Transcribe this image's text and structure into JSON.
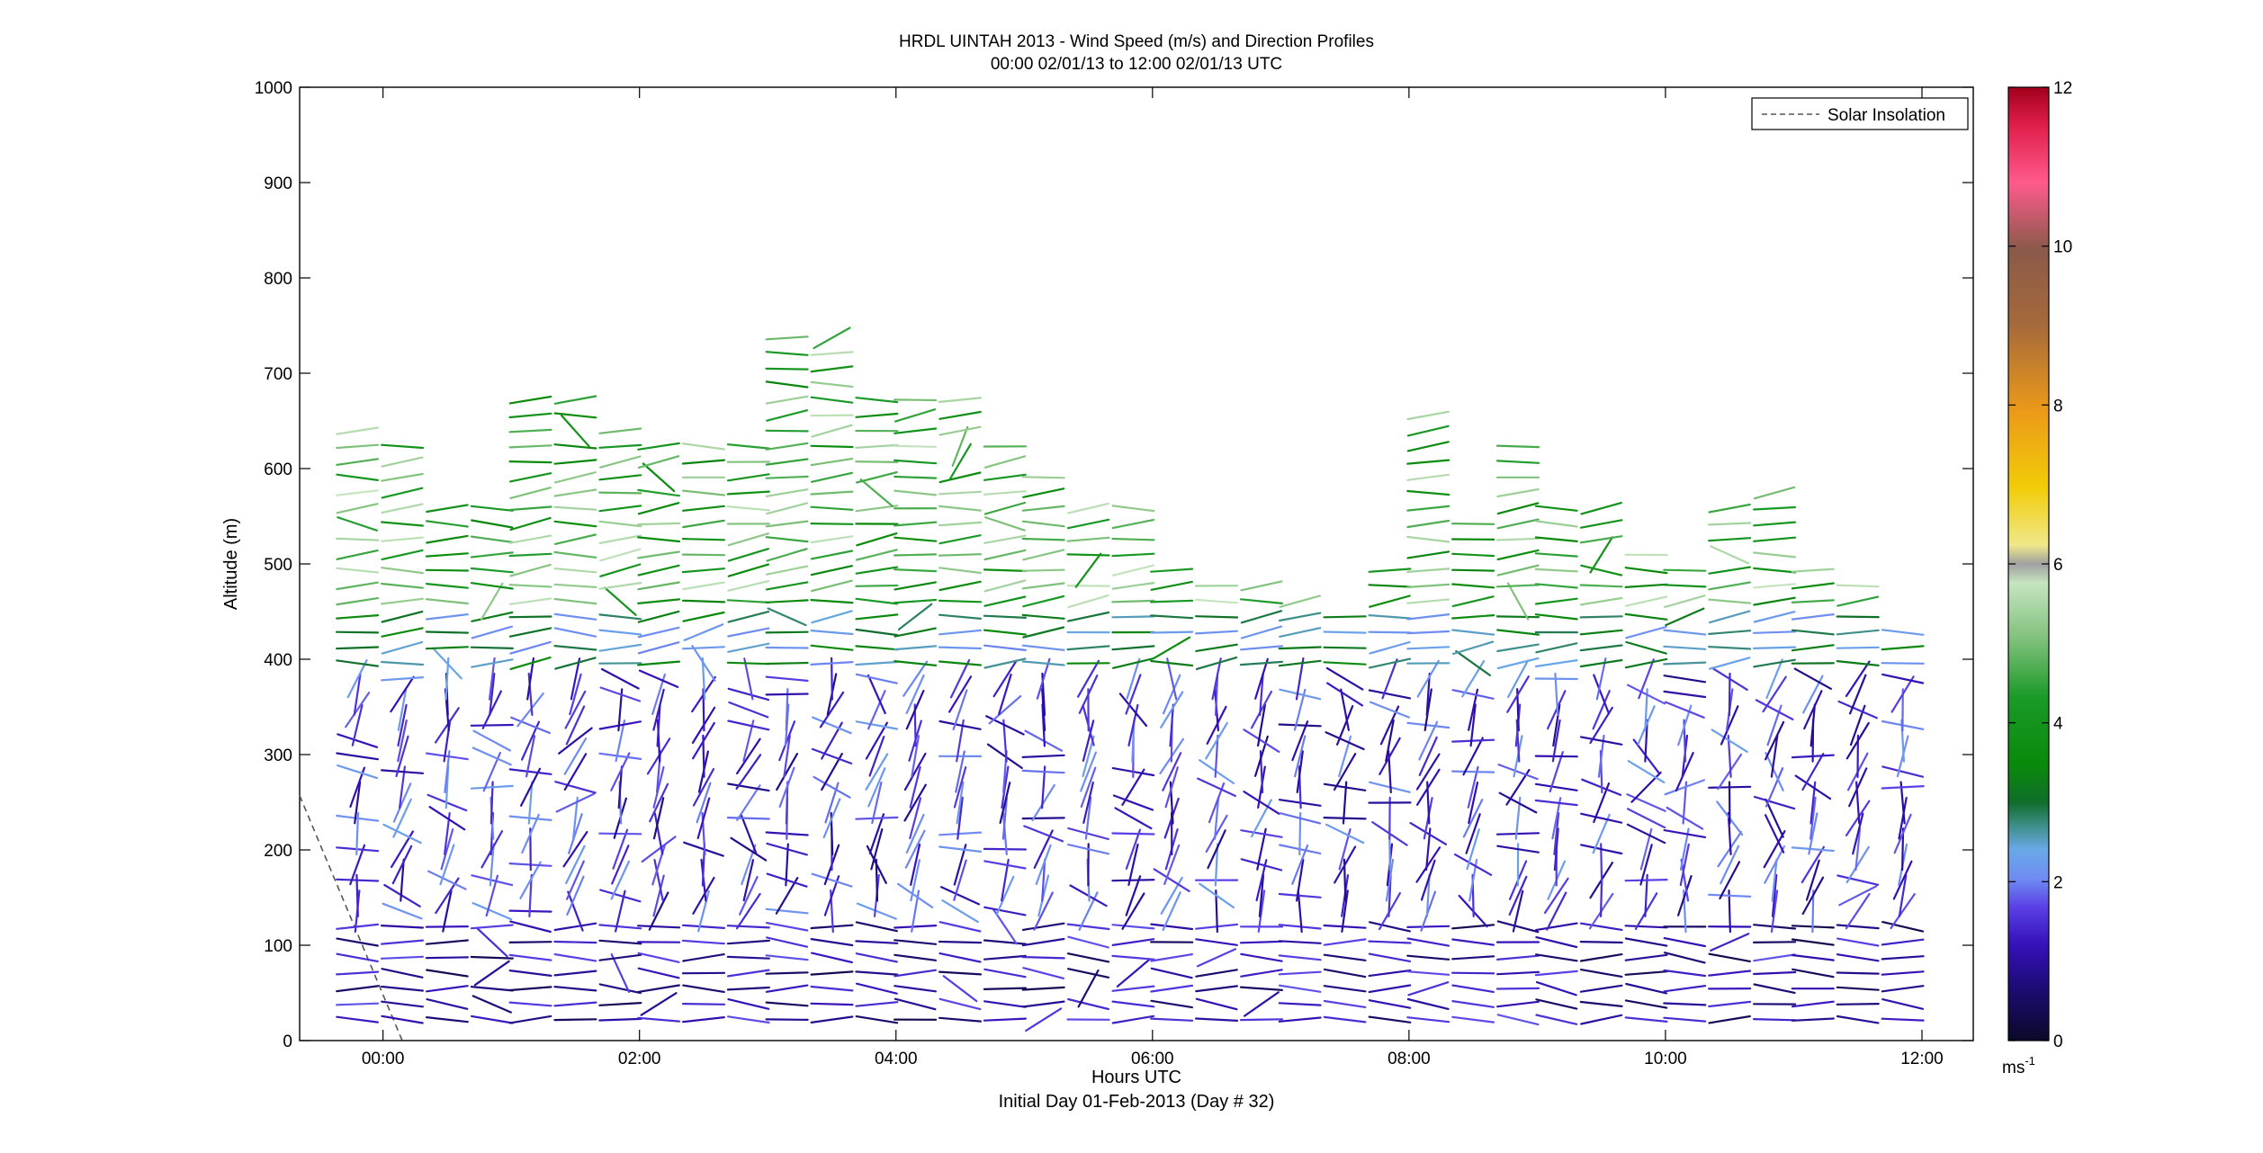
{
  "title_line1": "HRDL UINTAH 2013 - Wind Speed (m/s) and Direction Profiles",
  "title_line2": "00:00 02/01/13 to 12:00 02/01/13  UTC",
  "xlabel": "Hours UTC",
  "footer": "Initial Day 01-Feb-2013 (Day # 32)",
  "ylabel": "Altitude (m)",
  "legend_label": "Solar Insolation",
  "colorbar_unit": "ms",
  "colorbar_unit_exp": "-1",
  "x_ticks": [
    "00:00",
    "02:00",
    "04:00",
    "06:00",
    "08:00",
    "10:00",
    "12:00"
  ],
  "y_ticks": [
    "0",
    "100",
    "200",
    "300",
    "400",
    "500",
    "600",
    "700",
    "800",
    "900",
    "1000"
  ],
  "colorbar_ticks": [
    "0",
    "2",
    "4",
    "6",
    "8",
    "10",
    "12"
  ],
  "chart_data": {
    "type": "scatter",
    "title": "HRDL UINTAH 2013 - Wind Speed (m/s) and Direction Profiles",
    "subtitle": "00:00 02/01/13 to 12:00 02/01/13  UTC",
    "xlabel": "Hours UTC",
    "ylabel": "Altitude (m)",
    "xlim_hours": [
      -0.65,
      12.4
    ],
    "ylim": [
      0,
      1000
    ],
    "colorbar": {
      "label": "ms-1",
      "range": [
        0,
        12
      ]
    },
    "legend": {
      "entries": [
        "Solar Insolation"
      ],
      "placement": "top-right"
    },
    "grid": false,
    "solar_insolation": {
      "x_hours": [
        -0.65,
        0.15
      ],
      "y": [
        257,
        0
      ]
    },
    "profile_times_hours": [
      -0.2,
      0.15,
      0.5,
      0.85,
      1.15,
      1.5,
      1.85,
      2.15,
      2.5,
      2.85,
      3.15,
      3.5,
      3.85,
      4.15,
      4.5,
      4.85,
      5.15,
      5.5,
      5.85,
      6.15,
      6.5,
      6.85,
      7.15,
      7.5,
      7.85,
      8.15,
      8.5,
      8.85,
      9.15,
      9.5,
      9.85,
      10.15,
      10.5,
      10.85,
      11.15,
      11.5,
      11.85
    ],
    "profile_top_altitudes_m": [
      645,
      625,
      565,
      565,
      685,
      685,
      650,
      625,
      625,
      625,
      740,
      745,
      685,
      680,
      685,
      625,
      600,
      570,
      565,
      500,
      490,
      490,
      470,
      460,
      505,
      665,
      545,
      625,
      560,
      565,
      510,
      505,
      570,
      590,
      500,
      490,
      435
    ],
    "profile_spacing_m": 16.25,
    "speed_layers": [
      {
        "from_m": 0,
        "to_m": 130,
        "speed_ms": [
          0.3,
          1.8
        ]
      },
      {
        "from_m": 130,
        "to_m": 380,
        "speed_ms": [
          0.8,
          2.3
        ]
      },
      {
        "from_m": 380,
        "to_m": 460,
        "speed_ms": [
          2.0,
          3.6
        ]
      },
      {
        "from_m": 460,
        "to_m": 800,
        "speed_ms": [
          3.4,
          5.8
        ]
      }
    ]
  }
}
